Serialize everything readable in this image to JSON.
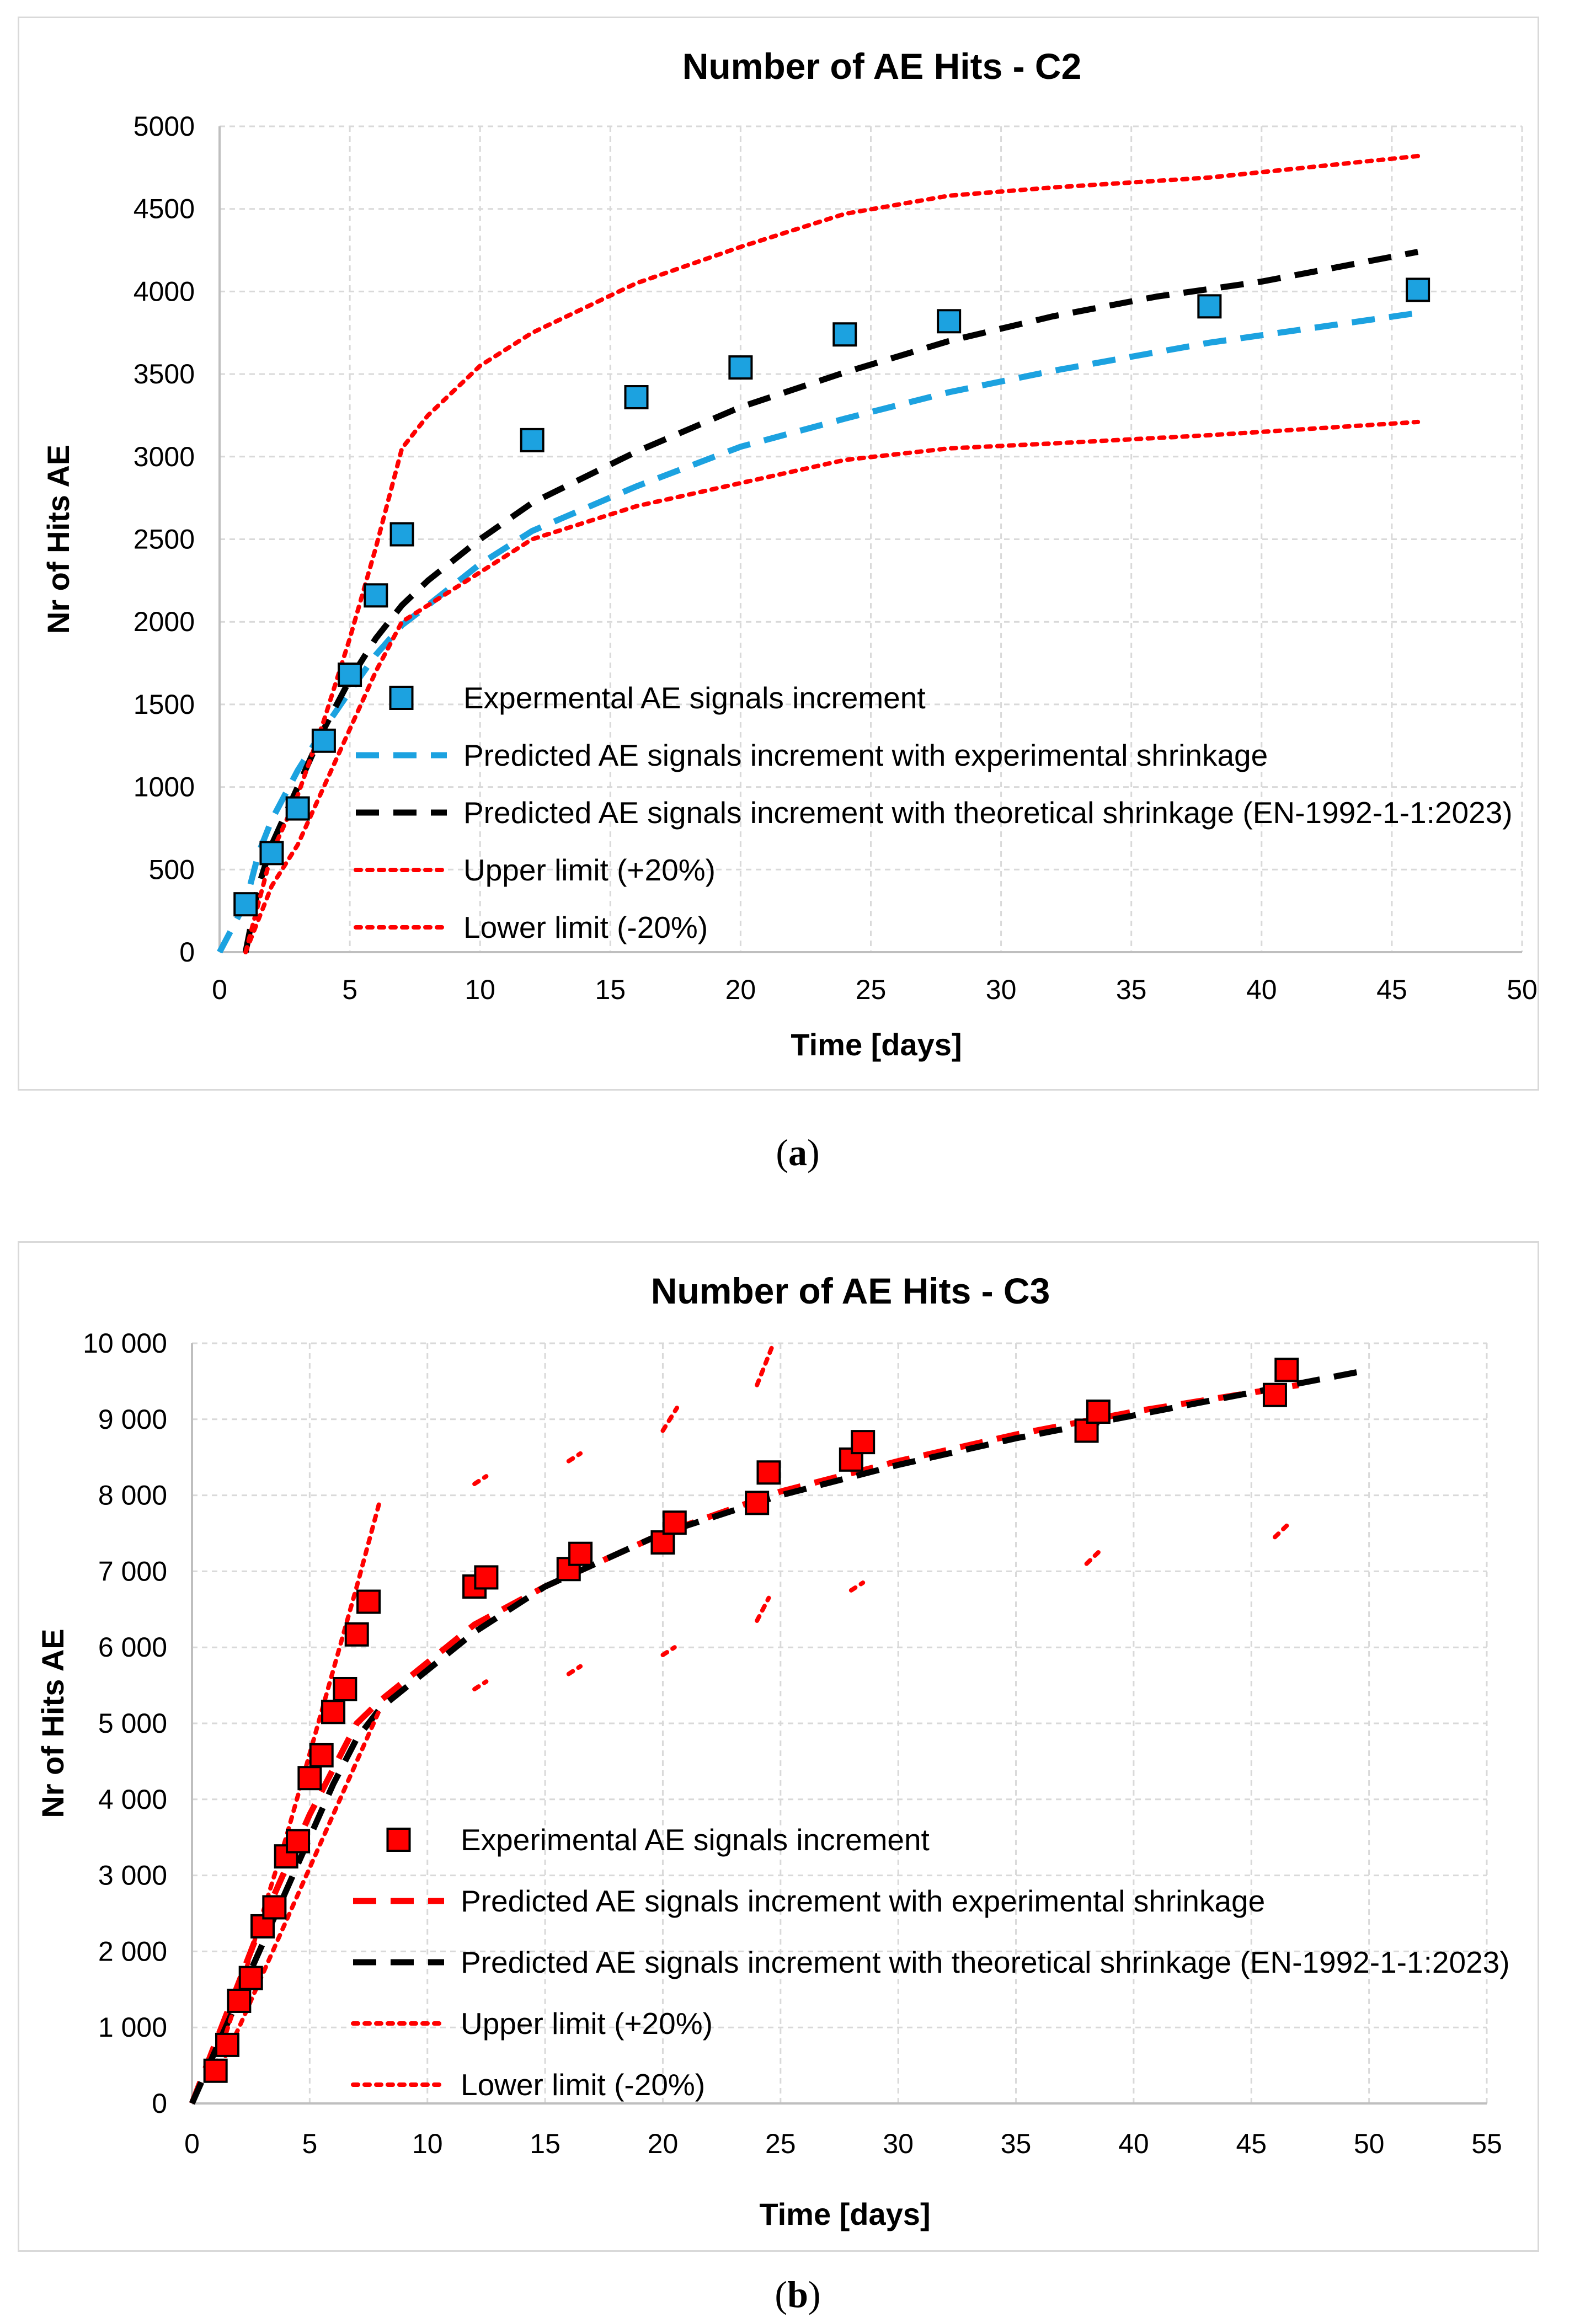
{
  "figure": {
    "caption_a": "(a)",
    "caption_a_letter": "a",
    "caption_b": "(b)",
    "caption_b_letter": "b"
  },
  "chart_data": [
    {
      "id": "a",
      "type": "scatter",
      "title": "Number of AE Hits - C2",
      "xlabel": "Time [days]",
      "ylabel": "Nr of Hits AE",
      "xlim": [
        0,
        50
      ],
      "ylim": [
        0,
        5000
      ],
      "xticks": [
        0,
        5,
        10,
        15,
        20,
        25,
        30,
        35,
        40,
        45,
        50
      ],
      "yticks": [
        0,
        500,
        1000,
        1500,
        2000,
        2500,
        3000,
        3500,
        4000,
        4500,
        5000
      ],
      "ytick_labels": [
        "0",
        "500",
        "1000",
        "1500",
        "2000",
        "2500",
        "3000",
        "3500",
        "4000",
        "4500",
        "5000"
      ],
      "grid": true,
      "legend_position": "center-bottom",
      "colors": {
        "experimental": "#1ca2e0",
        "pred_exp": "#1ca2e0",
        "pred_theo": "#000000",
        "limits": "#ff0000"
      },
      "series": [
        {
          "name": "Expermental AE signals increment",
          "style": "square",
          "x": [
            1,
            2,
            3,
            4,
            5,
            6,
            7,
            12,
            16,
            20,
            24,
            28,
            38,
            46
          ],
          "y": [
            290,
            600,
            870,
            1280,
            1680,
            2160,
            2530,
            3100,
            3360,
            3540,
            3740,
            3820,
            3910,
            4010
          ]
        },
        {
          "name": "Predicted AE signals increment with experimental shrinkage",
          "style": "dashed",
          "x": [
            0,
            1,
            1.5,
            2,
            3,
            4,
            5,
            6,
            7,
            8,
            10,
            12,
            16,
            20,
            24,
            28,
            32,
            38,
            42,
            46
          ],
          "y": [
            0,
            300,
            600,
            800,
            1100,
            1350,
            1580,
            1800,
            1980,
            2100,
            2350,
            2550,
            2820,
            3060,
            3230,
            3390,
            3520,
            3690,
            3780,
            3870
          ]
        },
        {
          "name": "Predicted AE signals increment with theoretical shrinkage (EN-1992-1-1:2023)",
          "style": "dashed",
          "x": [
            1,
            1.5,
            2,
            3,
            4,
            5,
            6,
            7,
            8,
            10,
            12,
            16,
            20,
            24,
            28,
            32,
            36,
            40,
            46
          ],
          "y": [
            0,
            400,
            650,
            1000,
            1350,
            1650,
            1900,
            2100,
            2250,
            2500,
            2720,
            3030,
            3300,
            3510,
            3700,
            3850,
            3970,
            4060,
            4240
          ]
        },
        {
          "name": "Upper limit (+20%)",
          "style": "dotted",
          "x": [
            1,
            2,
            3,
            4,
            5,
            6,
            7,
            8,
            10,
            12,
            16,
            20,
            24,
            28,
            32,
            38,
            46
          ],
          "y": [
            0,
            600,
            950,
            1400,
            1900,
            2450,
            3050,
            3250,
            3550,
            3750,
            4050,
            4270,
            4470,
            4580,
            4630,
            4690,
            4820
          ]
        },
        {
          "name": "Lower limit (-20%)",
          "style": "dotted",
          "x": [
            1,
            2,
            3,
            4,
            5,
            6,
            7,
            8,
            10,
            12,
            16,
            20,
            24,
            28,
            32,
            38,
            46
          ],
          "y": [
            0,
            400,
            650,
            1000,
            1350,
            1700,
            2000,
            2100,
            2300,
            2500,
            2700,
            2840,
            2980,
            3050,
            3080,
            3130,
            3210
          ]
        }
      ]
    },
    {
      "id": "b",
      "type": "scatter",
      "title": "Number of AE Hits - C3",
      "xlabel": "Time [days]",
      "ylabel": "Nr of Hits AE",
      "xlim": [
        0,
        55
      ],
      "ylim": [
        0,
        10000
      ],
      "xticks": [
        0,
        5,
        10,
        15,
        20,
        25,
        30,
        35,
        40,
        45,
        50,
        55
      ],
      "yticks": [
        0,
        1000,
        2000,
        3000,
        4000,
        5000,
        6000,
        7000,
        8000,
        9000,
        10000
      ],
      "ytick_labels": [
        "0",
        "1 000",
        "2 000",
        "3 000",
        "4 000",
        "5 000",
        "6 000",
        "7 000",
        "8 000",
        "9 000",
        "10 000"
      ],
      "grid": true,
      "legend_position": "center-bottom",
      "colors": {
        "experimental": "#ff0000",
        "pred_exp": "#ff0000",
        "pred_theo": "#000000",
        "limits": "#ff0000"
      },
      "series": [
        {
          "name": "Experimental AE signals increment",
          "style": "square",
          "x": [
            1,
            1.5,
            2,
            2.5,
            3,
            3.5,
            4,
            4.5,
            5,
            5.5,
            6,
            6.5,
            7,
            7.5,
            12,
            12.5,
            16,
            16.5,
            20,
            20.5,
            24,
            24.5,
            28,
            28.5,
            38,
            38.5,
            46,
            46.5
          ],
          "y": [
            430,
            770,
            1350,
            1650,
            2330,
            2580,
            3250,
            3450,
            4280,
            4580,
            5150,
            5450,
            6170,
            6600,
            6800,
            6920,
            7030,
            7230,
            7380,
            7640,
            7900,
            8300,
            8470,
            8700,
            8850,
            9100,
            9320,
            9650
          ]
        },
        {
          "name": "Predicted AE signals increment with experimental shrinkage",
          "style": "dashed",
          "x": [
            0,
            1,
            2,
            3,
            4,
            5,
            6,
            7,
            8,
            10,
            12,
            15,
            20,
            25,
            30,
            35,
            40,
            47
          ],
          "y": [
            0,
            800,
            1600,
            2400,
            3100,
            3800,
            4400,
            5000,
            5300,
            5800,
            6300,
            6800,
            7500,
            8050,
            8450,
            8800,
            9100,
            9450
          ]
        },
        {
          "name": "Predicted AE signals increment with theoretical shrinkage (EN-1992-1-1:2023)",
          "style": "dashed",
          "x": [
            0,
            1,
            2,
            3,
            4,
            5,
            6,
            7,
            8,
            10,
            12,
            15,
            20,
            25,
            30,
            35,
            40,
            45,
            50
          ],
          "y": [
            0,
            700,
            1400,
            2100,
            2800,
            3500,
            4200,
            4800,
            5200,
            5700,
            6200,
            6800,
            7500,
            8000,
            8400,
            8750,
            9050,
            9350,
            9650
          ]
        },
        {
          "name": "Upper limit (+20%)",
          "style": "dotted",
          "x": [
            1,
            2,
            3,
            4,
            5,
            6,
            7,
            8
          ],
          "y": [
            500,
            1450,
            2500,
            3500,
            4600,
            5700,
            6800,
            7950
          ]
        },
        {
          "name": "Lower limit (-20%)",
          "style": "dotted",
          "x": [
            1,
            2,
            3,
            4,
            5,
            6,
            7,
            8
          ],
          "y": [
            350,
            1000,
            1700,
            2400,
            3100,
            3800,
            4500,
            5200
          ]
        }
      ],
      "limit_fragments": [
        {
          "x": [
            12,
            12.5
          ],
          "y": [
            8150,
            8250
          ]
        },
        {
          "x": [
            16,
            16.5
          ],
          "y": [
            8450,
            8550
          ]
        },
        {
          "x": [
            20,
            20.6
          ],
          "y": [
            8850,
            9150
          ]
        },
        {
          "x": [
            24,
            24.7
          ],
          "y": [
            9450,
            10000
          ]
        },
        {
          "x": [
            12,
            12.5
          ],
          "y": [
            5450,
            5550
          ]
        },
        {
          "x": [
            16,
            16.5
          ],
          "y": [
            5650,
            5750
          ]
        },
        {
          "x": [
            20,
            20.5
          ],
          "y": [
            5900,
            6000
          ]
        },
        {
          "x": [
            24,
            24.5
          ],
          "y": [
            6350,
            6650
          ]
        },
        {
          "x": [
            28,
            28.5
          ],
          "y": [
            6750,
            6850
          ]
        },
        {
          "x": [
            38,
            38.5
          ],
          "y": [
            7100,
            7250
          ]
        },
        {
          "x": [
            46,
            46.5
          ],
          "y": [
            7450,
            7600
          ]
        }
      ]
    }
  ]
}
